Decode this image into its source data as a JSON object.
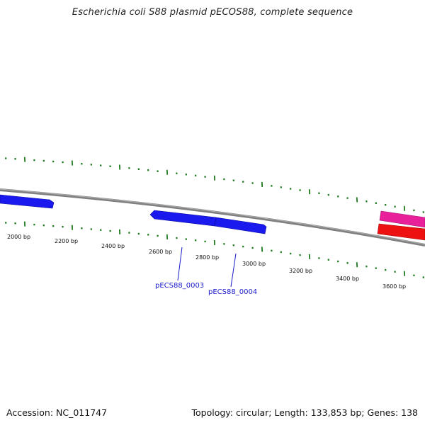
{
  "title": "Escherichia coli S88 plasmid pECOS88, complete sequence",
  "footer": {
    "accession": "Accession: NC_011747",
    "summary": "Topology: circular; Length: 133,853 bp; Genes: 138"
  },
  "map": {
    "backbone_color": "#808080",
    "tick_color": "#1f7a1f",
    "bp_labels": [
      "2000 bp",
      "2200 bp",
      "2400 bp",
      "2600 bp",
      "2800 bp",
      "3000 bp",
      "3200 bp",
      "3400 bp",
      "3600 bp"
    ],
    "features": [
      {
        "strand": "forward",
        "color": "#1a1aee",
        "label": ""
      },
      {
        "strand": "reverse",
        "color": "#1a1aee",
        "label": "pECS88_0003"
      },
      {
        "strand": "forward",
        "color": "#1a1aee",
        "label": "pECS88_0004"
      },
      {
        "strand": "forward",
        "color": "#e8209a",
        "label": ""
      },
      {
        "strand": "forward",
        "color": "#ee1111",
        "label": ""
      }
    ]
  }
}
